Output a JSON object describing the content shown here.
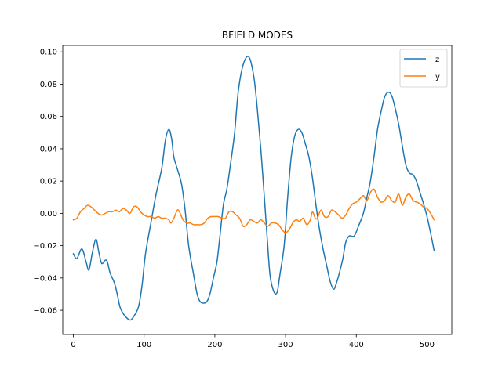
{
  "chart_data": {
    "type": "line",
    "title": "BFIELD MODES",
    "xlabel": "",
    "ylabel": "",
    "xlim": [
      -15,
      535
    ],
    "ylim": [
      -0.075,
      0.104
    ],
    "xticks": [
      0,
      100,
      200,
      300,
      400,
      500
    ],
    "xtick_labels": [
      "0",
      "100",
      "200",
      "300",
      "400",
      "500"
    ],
    "yticks": [
      -0.06,
      -0.04,
      -0.02,
      0.0,
      0.02,
      0.04,
      0.06,
      0.08,
      0.1
    ],
    "ytick_labels": [
      "−0.06",
      "−0.04",
      "−0.02",
      "0.00",
      "0.02",
      "0.04",
      "0.06",
      "0.08",
      "0.10"
    ],
    "grid": false,
    "legend_position": "upper right",
    "series": [
      {
        "name": "z",
        "color": "#1f77b4",
        "points": [
          [
            0,
            -0.025
          ],
          [
            5,
            -0.028
          ],
          [
            12,
            -0.022
          ],
          [
            18,
            -0.03
          ],
          [
            22,
            -0.035
          ],
          [
            27,
            -0.024
          ],
          [
            32,
            -0.016
          ],
          [
            36,
            -0.024
          ],
          [
            40,
            -0.031
          ],
          [
            45,
            -0.029
          ],
          [
            48,
            -0.03
          ],
          [
            52,
            -0.037
          ],
          [
            58,
            -0.043
          ],
          [
            62,
            -0.05
          ],
          [
            66,
            -0.058
          ],
          [
            72,
            -0.063
          ],
          [
            80,
            -0.066
          ],
          [
            85,
            -0.064
          ],
          [
            92,
            -0.058
          ],
          [
            97,
            -0.045
          ],
          [
            102,
            -0.025
          ],
          [
            110,
            -0.005
          ],
          [
            117,
            0.012
          ],
          [
            125,
            0.028
          ],
          [
            130,
            0.045
          ],
          [
            135,
            0.052
          ],
          [
            139,
            0.046
          ],
          [
            142,
            0.035
          ],
          [
            148,
            0.026
          ],
          [
            153,
            0.018
          ],
          [
            158,
            0.002
          ],
          [
            163,
            -0.02
          ],
          [
            170,
            -0.038
          ],
          [
            175,
            -0.05
          ],
          [
            180,
            -0.055
          ],
          [
            188,
            -0.055
          ],
          [
            193,
            -0.05
          ],
          [
            198,
            -0.04
          ],
          [
            203,
            -0.03
          ],
          [
            207,
            -0.015
          ],
          [
            212,
            0.005
          ],
          [
            217,
            0.015
          ],
          [
            222,
            0.03
          ],
          [
            228,
            0.05
          ],
          [
            233,
            0.075
          ],
          [
            240,
            0.092
          ],
          [
            248,
            0.097
          ],
          [
            255,
            0.085
          ],
          [
            260,
            0.065
          ],
          [
            265,
            0.04
          ],
          [
            270,
            0.01
          ],
          [
            274,
            -0.015
          ],
          [
            278,
            -0.038
          ],
          [
            283,
            -0.048
          ],
          [
            288,
            -0.049
          ],
          [
            292,
            -0.038
          ],
          [
            298,
            -0.02
          ],
          [
            303,
            0.01
          ],
          [
            308,
            0.035
          ],
          [
            313,
            0.048
          ],
          [
            318,
            0.052
          ],
          [
            323,
            0.05
          ],
          [
            328,
            0.043
          ],
          [
            333,
            0.035
          ],
          [
            338,
            0.022
          ],
          [
            343,
            0.005
          ],
          [
            348,
            -0.01
          ],
          [
            353,
            -0.022
          ],
          [
            358,
            -0.032
          ],
          [
            363,
            -0.042
          ],
          [
            368,
            -0.047
          ],
          [
            372,
            -0.043
          ],
          [
            376,
            -0.037
          ],
          [
            381,
            -0.028
          ],
          [
            385,
            -0.018
          ],
          [
            390,
            -0.014
          ],
          [
            397,
            -0.014
          ],
          [
            403,
            -0.008
          ],
          [
            410,
            0.0
          ],
          [
            415,
            0.01
          ],
          [
            420,
            0.02
          ],
          [
            425,
            0.035
          ],
          [
            430,
            0.052
          ],
          [
            435,
            0.063
          ],
          [
            440,
            0.072
          ],
          [
            445,
            0.075
          ],
          [
            450,
            0.073
          ],
          [
            455,
            0.065
          ],
          [
            460,
            0.055
          ],
          [
            465,
            0.042
          ],
          [
            470,
            0.03
          ],
          [
            475,
            0.025
          ],
          [
            480,
            0.024
          ],
          [
            485,
            0.02
          ],
          [
            490,
            0.013
          ],
          [
            495,
            0.006
          ],
          [
            500,
            -0.002
          ],
          [
            505,
            -0.012
          ],
          [
            510,
            -0.023
          ]
        ]
      },
      {
        "name": "y",
        "color": "#ff7f0e",
        "points": [
          [
            0,
            -0.004
          ],
          [
            5,
            -0.003
          ],
          [
            10,
            0.001
          ],
          [
            15,
            0.003
          ],
          [
            20,
            0.005
          ],
          [
            25,
            0.004
          ],
          [
            30,
            0.002
          ],
          [
            35,
            0.0
          ],
          [
            40,
            -0.001
          ],
          [
            45,
            0.0
          ],
          [
            50,
            0.001
          ],
          [
            55,
            0.001
          ],
          [
            60,
            0.002
          ],
          [
            65,
            0.001
          ],
          [
            70,
            0.003
          ],
          [
            75,
            0.002
          ],
          [
            80,
            0.0
          ],
          [
            85,
            0.004
          ],
          [
            90,
            0.004
          ],
          [
            95,
            0.001
          ],
          [
            100,
            -0.001
          ],
          [
            105,
            -0.002
          ],
          [
            110,
            -0.002
          ],
          [
            115,
            -0.003
          ],
          [
            120,
            -0.002
          ],
          [
            125,
            -0.003
          ],
          [
            130,
            -0.003
          ],
          [
            135,
            -0.004
          ],
          [
            138,
            -0.006
          ],
          [
            142,
            -0.003
          ],
          [
            147,
            0.002
          ],
          [
            150,
            0.001
          ],
          [
            155,
            -0.004
          ],
          [
            160,
            -0.006
          ],
          [
            165,
            -0.006
          ],
          [
            170,
            -0.007
          ],
          [
            175,
            -0.007
          ],
          [
            180,
            -0.007
          ],
          [
            185,
            -0.006
          ],
          [
            190,
            -0.003
          ],
          [
            195,
            -0.002
          ],
          [
            200,
            -0.002
          ],
          [
            205,
            -0.002
          ],
          [
            210,
            -0.003
          ],
          [
            215,
            -0.003
          ],
          [
            220,
            0.001
          ],
          [
            225,
            0.001
          ],
          [
            230,
            -0.001
          ],
          [
            235,
            -0.003
          ],
          [
            240,
            -0.008
          ],
          [
            245,
            -0.007
          ],
          [
            250,
            -0.004
          ],
          [
            255,
            -0.005
          ],
          [
            260,
            -0.006
          ],
          [
            265,
            -0.004
          ],
          [
            270,
            -0.006
          ],
          [
            275,
            -0.008
          ],
          [
            280,
            -0.006
          ],
          [
            285,
            -0.006
          ],
          [
            290,
            -0.007
          ],
          [
            295,
            -0.01
          ],
          [
            300,
            -0.012
          ],
          [
            305,
            -0.01
          ],
          [
            310,
            -0.006
          ],
          [
            315,
            -0.004
          ],
          [
            320,
            -0.005
          ],
          [
            325,
            -0.003
          ],
          [
            330,
            -0.007
          ],
          [
            335,
            -0.004
          ],
          [
            338,
            0.001
          ],
          [
            342,
            -0.003
          ],
          [
            345,
            -0.003
          ],
          [
            350,
            0.002
          ],
          [
            355,
            -0.002
          ],
          [
            360,
            -0.002
          ],
          [
            365,
            0.002
          ],
          [
            370,
            0.001
          ],
          [
            375,
            -0.001
          ],
          [
            380,
            -0.003
          ],
          [
            385,
            -0.001
          ],
          [
            390,
            0.003
          ],
          [
            395,
            0.006
          ],
          [
            400,
            0.007
          ],
          [
            405,
            0.009
          ],
          [
            410,
            0.011
          ],
          [
            415,
            0.008
          ],
          [
            420,
            0.013
          ],
          [
            425,
            0.015
          ],
          [
            430,
            0.01
          ],
          [
            435,
            0.007
          ],
          [
            440,
            0.008
          ],
          [
            445,
            0.011
          ],
          [
            450,
            0.008
          ],
          [
            455,
            0.007
          ],
          [
            460,
            0.012
          ],
          [
            465,
            0.005
          ],
          [
            470,
            0.01
          ],
          [
            475,
            0.012
          ],
          [
            480,
            0.008
          ],
          [
            485,
            0.007
          ],
          [
            490,
            0.006
          ],
          [
            495,
            0.004
          ],
          [
            500,
            0.003
          ],
          [
            505,
            0.0
          ],
          [
            510,
            -0.004
          ]
        ]
      }
    ]
  }
}
